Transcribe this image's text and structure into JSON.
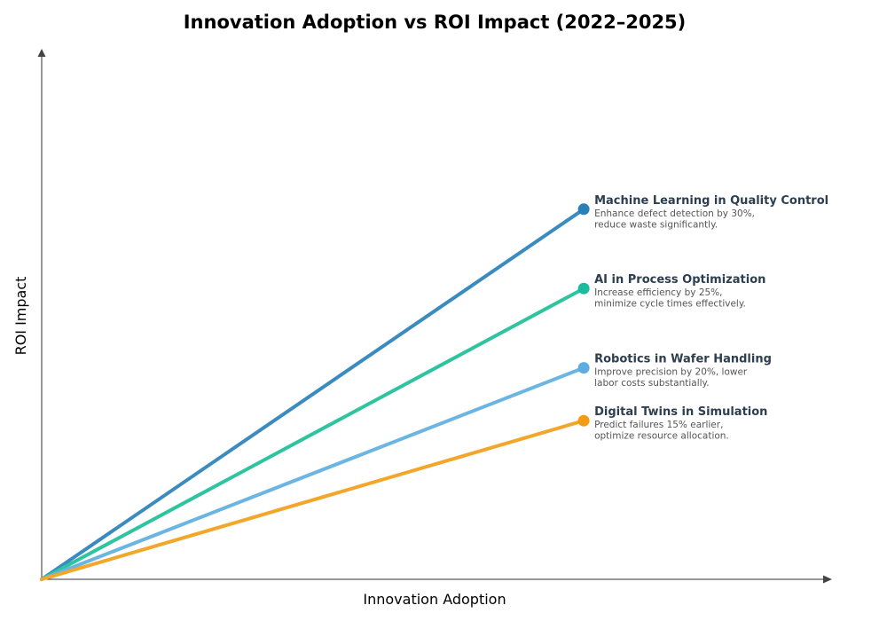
{
  "chart_data": {
    "type": "line",
    "title": "Innovation Adoption vs ROI Impact (2022–2025)",
    "xlabel": "Innovation Adoption",
    "ylabel": "ROI Impact",
    "xlim": [
      0,
      1
    ],
    "ylim": [
      0,
      1
    ],
    "grid": false,
    "series": [
      {
        "name": "Machine Learning in Quality Control",
        "description": [
          "Enhance defect detection by 30%,",
          "reduce waste significantly."
        ],
        "x": [
          0,
          0.7
        ],
        "y": [
          0,
          0.7
        ],
        "color": "#3a8bc0",
        "marker_color": "#2980b9"
      },
      {
        "name": "AI in Process Optimization",
        "description": [
          "Increase efficiency by 25%,",
          "minimize cycle times effectively."
        ],
        "x": [
          0,
          0.7
        ],
        "y": [
          0,
          0.55
        ],
        "color": "#2ec4a0",
        "marker_color": "#1abc9c"
      },
      {
        "name": "Robotics in Wafer Handling",
        "description": [
          "Improve precision by 20%, lower",
          "labor costs substantially."
        ],
        "x": [
          0,
          0.7
        ],
        "y": [
          0,
          0.4
        ],
        "color": "#6bb5e3",
        "marker_color": "#5dade2"
      },
      {
        "name": "Digital Twins in Simulation",
        "description": [
          "Predict failures 15% earlier,",
          "optimize resource allocation."
        ],
        "x": [
          0,
          0.7
        ],
        "y": [
          0,
          0.3
        ],
        "color": "#f2a62a",
        "marker_color": "#f39c12"
      }
    ]
  }
}
